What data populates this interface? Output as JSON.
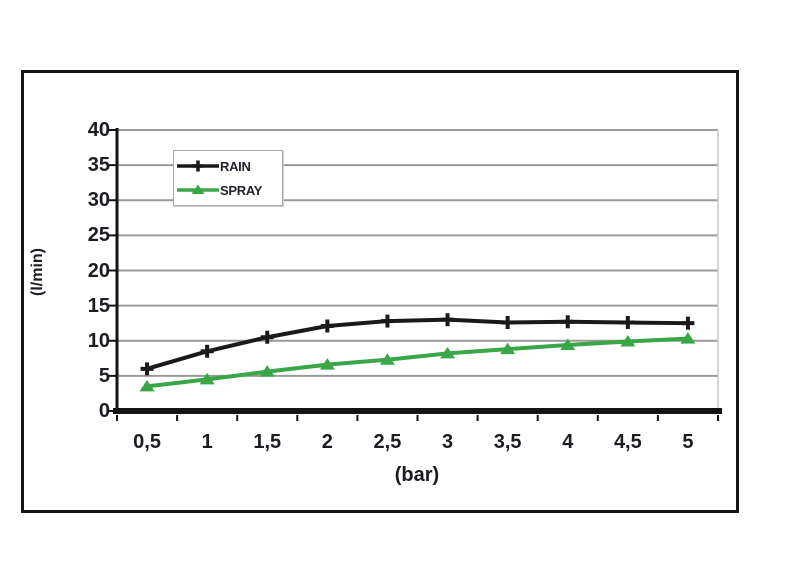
{
  "chart_data": {
    "type": "line",
    "title": "",
    "xlabel": "(bar)",
    "ylabel": "(l/min)",
    "x_values": [
      0.5,
      1,
      1.5,
      2,
      2.5,
      3,
      3.5,
      4,
      4.5,
      5
    ],
    "categories": [
      "0,5",
      "1",
      "1,5",
      "2",
      "2,5",
      "3",
      "3,5",
      "4",
      "4,5",
      "5"
    ],
    "series": [
      {
        "name": "RAIN",
        "marker": "plus",
        "color": "#1a1a1a",
        "values": [
          6,
          8.5,
          10.5,
          12.1,
          12.8,
          13,
          12.6,
          12.7,
          12.6,
          12.5
        ]
      },
      {
        "name": "SPRAY",
        "marker": "triangle",
        "color": "#3aa648",
        "values": [
          3.5,
          4.5,
          5.6,
          6.6,
          7.3,
          8.2,
          8.8,
          9.4,
          9.9,
          10.3
        ]
      }
    ],
    "ylim": [
      0,
      40
    ],
    "y_tick_step": 5,
    "y_tick_labels_top_to_bottom": [
      "40",
      "35",
      "30",
      "25",
      "20",
      "15",
      "10",
      "5",
      "0"
    ],
    "grid": true,
    "legend_position": "top-left-inside",
    "colors": {
      "gridline": "#9a9a9a",
      "axis": "#141414",
      "plot_right_border": "#c9c9c9",
      "rain": "#1a1a1a",
      "spray": "#3aa648",
      "text": "#1b1b22",
      "frame_border": "#141414",
      "legend_border": "#a8a8a8"
    }
  }
}
